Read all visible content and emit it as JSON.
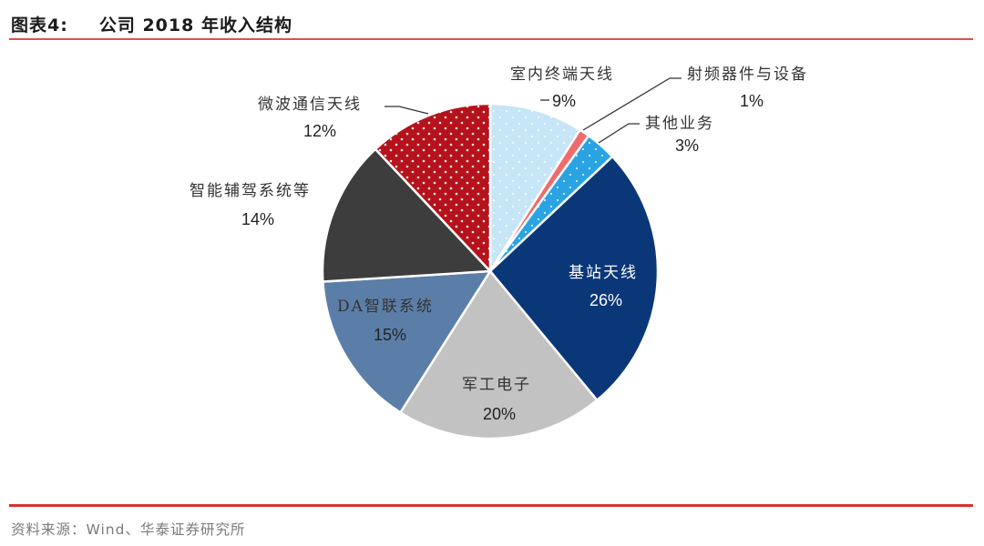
{
  "header": {
    "figure_no": "图表4:",
    "title": "公司 2018 年收入结构"
  },
  "footer": {
    "source": "资料来源：Wind、华泰证券研究所"
  },
  "colors": {
    "rule": "#d7322e",
    "slices": [
      "#c6e6f7",
      "#f06b6b",
      "#2aa3e3",
      "#0a3778",
      "#c2c2c2",
      "#5b7ea8",
      "#3d3d3d",
      "#b5121b"
    ]
  },
  "chart_data": {
    "type": "pie",
    "title": "公司 2018 年收入结构",
    "start_angle_deg": 0,
    "direction": "clockwise",
    "categories": [
      "室内终端天线",
      "射频器件与设备",
      "其他业务",
      "基站天线",
      "军工电子",
      "DA智联系统",
      "智能辅驾系统等",
      "微波通信天线"
    ],
    "values": [
      9,
      1,
      3,
      26,
      20,
      15,
      14,
      12
    ],
    "labels": [
      "9%",
      "1%",
      "3%",
      "26%",
      "20%",
      "15%",
      "14%",
      "12%"
    ],
    "unit": "%",
    "legend": "none (data labels with category names)"
  },
  "slices": [
    {
      "name": "室内终端天线",
      "pct": "9%"
    },
    {
      "name": "射频器件与设备",
      "pct": "1%"
    },
    {
      "name": "其他业务",
      "pct": "3%"
    },
    {
      "name": "基站天线",
      "pct": "26%"
    },
    {
      "name": "军工电子",
      "pct": "20%"
    },
    {
      "name": "DA智联系统",
      "pct": "15%"
    },
    {
      "name": "智能辅驾系统等",
      "pct": "14%"
    },
    {
      "name": "微波通信天线",
      "pct": "12%"
    }
  ]
}
